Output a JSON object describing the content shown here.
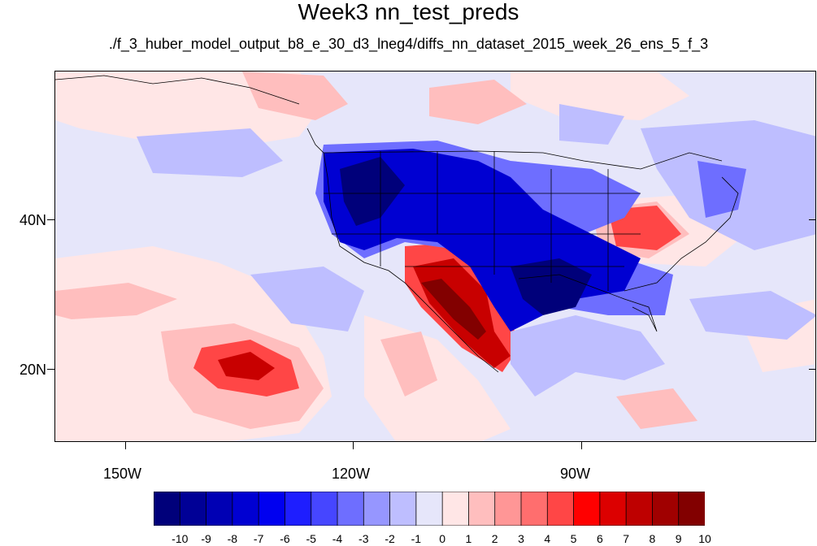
{
  "title": "Week3 nn_test_preds",
  "subtitle": "./f_3_huber_model_output_b8_e_30_d3_lneg4/diffs_nn_dataset_2015_week_26_ens_5_f_3",
  "lat_labels": [
    "40N",
    "20N"
  ],
  "lon_labels": [
    "150W",
    "120W",
    "90W"
  ],
  "colorbar": {
    "labels": [
      "-10",
      "-9",
      "-8",
      "-7",
      "-6",
      "-5",
      "-4",
      "-3",
      "-2",
      "-1",
      "0",
      "1",
      "2",
      "3",
      "4",
      "5",
      "6",
      "7",
      "8",
      "9",
      "10"
    ],
    "colors": [
      "#00007a",
      "#000096",
      "#0000b4",
      "#0000d2",
      "#0000f0",
      "#1e1eff",
      "#4646ff",
      "#6e6eff",
      "#9696ff",
      "#bebeff",
      "#e6e6fa",
      "#ffe6e6",
      "#ffbebe",
      "#ff9696",
      "#ff6e6e",
      "#ff4646",
      "#ff0000",
      "#dc0000",
      "#be0000",
      "#a00000",
      "#820000"
    ]
  },
  "map_colors": {
    "ocean": "#e6e6fa",
    "light_pink": "#ffe6e6",
    "pink": "#ffbebe",
    "light_blue": "#bebeff",
    "blue_mid": "#6e6eff",
    "blue_deep": "#0000d2",
    "blue_darkest": "#00007a",
    "red_mid": "#ff4646",
    "red_deep": "#c80000",
    "red_darkest": "#820000"
  }
}
